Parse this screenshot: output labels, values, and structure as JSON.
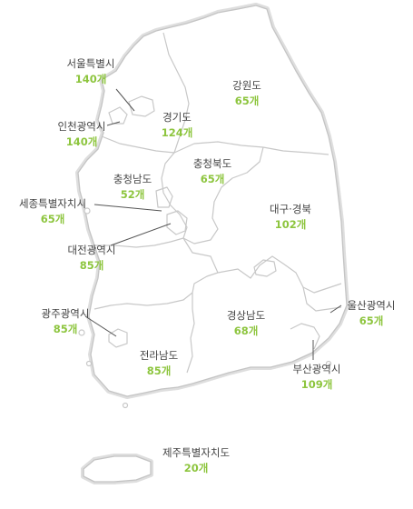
{
  "colors": {
    "count": "#8dc53e",
    "name": "#444444",
    "border": "#c8c8c8"
  },
  "regions": {
    "seoul": {
      "name": "서울특별시",
      "count": "140개"
    },
    "incheon": {
      "name": "인천광역시",
      "count": "140개"
    },
    "gyeonggi": {
      "name": "경기도",
      "count": "124개"
    },
    "gangwon": {
      "name": "강원도",
      "count": "65개"
    },
    "chungnam": {
      "name": "충청남도",
      "count": "52개"
    },
    "chungbuk": {
      "name": "충청북도",
      "count": "65개"
    },
    "sejong": {
      "name": "세종특별자치시",
      "count": "65개"
    },
    "daejeon": {
      "name": "대전광역시",
      "count": "85개"
    },
    "daegu": {
      "name": "대구·경북",
      "count": "102개"
    },
    "ulsan": {
      "name": "울산광역시",
      "count": "65개"
    },
    "gwangju": {
      "name": "광주광역시",
      "count": "85개"
    },
    "gyeongnam": {
      "name": "경상남도",
      "count": "68개"
    },
    "jeonnam": {
      "name": "전라남도",
      "count": "85개"
    },
    "busan": {
      "name": "부산광역시",
      "count": "109개"
    },
    "jeju": {
      "name": "제주특별자치도",
      "count": "20개"
    }
  }
}
